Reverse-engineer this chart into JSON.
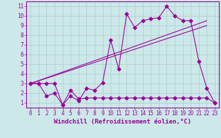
{
  "background_color": "#cce8e8",
  "grid_color": "#aacccc",
  "line_color": "#990099",
  "xlim": [
    -0.5,
    23.5
  ],
  "ylim": [
    0.5,
    11.5
  ],
  "xticks": [
    0,
    1,
    2,
    3,
    4,
    5,
    6,
    7,
    8,
    9,
    10,
    11,
    12,
    13,
    14,
    15,
    16,
    17,
    18,
    19,
    20,
    21,
    22,
    23
  ],
  "yticks": [
    1,
    2,
    3,
    4,
    5,
    6,
    7,
    8,
    9,
    10,
    11
  ],
  "series1_x": [
    0,
    1,
    2,
    3,
    4,
    5,
    6,
    7,
    8,
    9,
    10,
    11,
    12,
    13,
    14,
    15,
    16,
    17,
    18,
    19,
    20,
    21,
    22,
    23
  ],
  "series1_y": [
    3.0,
    3.0,
    3.0,
    3.0,
    0.8,
    1.7,
    1.2,
    2.5,
    2.3,
    3.1,
    7.5,
    4.5,
    10.2,
    8.8,
    9.5,
    9.7,
    9.8,
    11.0,
    10.0,
    9.5,
    9.5,
    5.3,
    2.5,
    1.0
  ],
  "series2_x": [
    0,
    1,
    2,
    3,
    4,
    5,
    6,
    7,
    8,
    9,
    10,
    11,
    12,
    13,
    14,
    15,
    16,
    17,
    18,
    19,
    20,
    21,
    22,
    23
  ],
  "series2_y": [
    3.0,
    3.0,
    1.7,
    2.0,
    0.8,
    2.3,
    1.4,
    1.5,
    1.5,
    1.5,
    1.5,
    1.5,
    1.5,
    1.5,
    1.5,
    1.5,
    1.5,
    1.5,
    1.5,
    1.5,
    1.5,
    1.5,
    1.5,
    1.0
  ],
  "series3_x": [
    0,
    22
  ],
  "series3_y": [
    3.0,
    9.5
  ],
  "series4_x": [
    0,
    22
  ],
  "series4_y": [
    3.0,
    9.0
  ],
  "xlabel": "Windchill (Refroidissement éolien,°C)",
  "xlabel_fontsize": 6.5,
  "tick_fontsize": 5.5,
  "marker_size": 2.5,
  "linewidth": 0.8
}
